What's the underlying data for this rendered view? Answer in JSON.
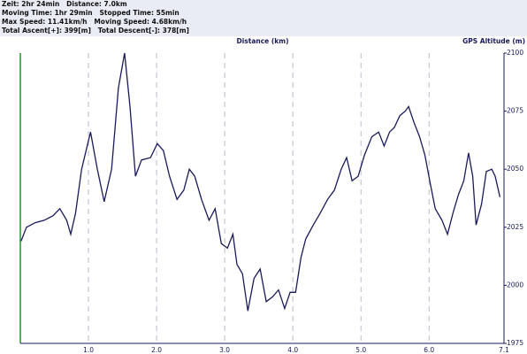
{
  "header": {
    "lines": [
      "Zeit: 2hr 24min   Distance: 7.0km",
      "Moving Time: 1hr 29min   Stopped Time: 55min",
      "Max Speed: 11.41km/h   Moving Speed: 4.68km/h",
      "Total Ascent[+]: 399[m]   Total Descent[-]: 378[m]"
    ]
  },
  "chart_data": {
    "type": "line",
    "x_label": "Distance (km)",
    "y_label": "GPS Altitude (m)",
    "x": [
      0.01,
      0.09,
      0.22,
      0.35,
      0.48,
      0.58,
      0.68,
      0.74,
      0.81,
      0.9,
      1.03,
      1.13,
      1.23,
      1.34,
      1.44,
      1.53,
      1.61,
      1.69,
      1.78,
      1.91,
      2.01,
      2.1,
      2.19,
      2.3,
      2.4,
      2.48,
      2.56,
      2.66,
      2.77,
      2.86,
      2.95,
      3.04,
      3.12,
      3.18,
      3.26,
      3.34,
      3.43,
      3.52,
      3.61,
      3.7,
      3.79,
      3.88,
      3.96,
      4.04,
      4.12,
      4.19,
      4.3,
      4.4,
      4.51,
      4.61,
      4.71,
      4.79,
      4.87,
      4.96,
      5.05,
      5.16,
      5.26,
      5.34,
      5.42,
      5.49,
      5.57,
      5.65,
      5.7,
      5.78,
      5.86,
      5.94,
      6.01,
      6.09,
      6.19,
      6.27,
      6.35,
      6.43,
      6.51,
      6.58,
      6.64,
      6.69,
      6.77,
      6.84,
      6.92,
      6.97,
      7.04
    ],
    "series": [
      {
        "name": "GPS Altitude",
        "color": "#1a1a5a",
        "values": [
          2019,
          2025,
          2027,
          2028,
          2030,
          2033,
          2028,
          2022,
          2031,
          2050,
          2066,
          2050,
          2036,
          2050,
          2085,
          2100,
          2077,
          2047,
          2054,
          2055,
          2061,
          2058,
          2047,
          2037,
          2041,
          2050,
          2047,
          2037,
          2028,
          2033,
          2018,
          2016,
          2022,
          2009,
          2005,
          1989,
          2003,
          2007,
          1993,
          1995,
          1998,
          1990,
          1997,
          1997,
          2012,
          2020,
          2026,
          2031,
          2037,
          2041,
          2050,
          2055,
          2045,
          2047,
          2056,
          2064,
          2066,
          2060,
          2066,
          2068,
          2073,
          2075,
          2077,
          2070,
          2064,
          2056,
          2045,
          2033,
          2028,
          2022,
          2031,
          2039,
          2045,
          2057,
          2047,
          2026,
          2035,
          2049,
          2050,
          2047,
          2038
        ]
      }
    ],
    "xlim": [
      0,
      7.1
    ],
    "xticks": [
      {
        "value": 1,
        "label": "1.0"
      },
      {
        "value": 2,
        "label": "2.0"
      },
      {
        "value": 3,
        "label": "3.0"
      },
      {
        "value": 4,
        "label": "4.0"
      },
      {
        "value": 5,
        "label": "5.0"
      },
      {
        "value": 6,
        "label": "6.0"
      },
      7.1
    ],
    "ylim": [
      1975,
      2100
    ],
    "yticks": [
      1975,
      2000,
      2025,
      2050,
      2075,
      2100
    ],
    "grid": true
  }
}
